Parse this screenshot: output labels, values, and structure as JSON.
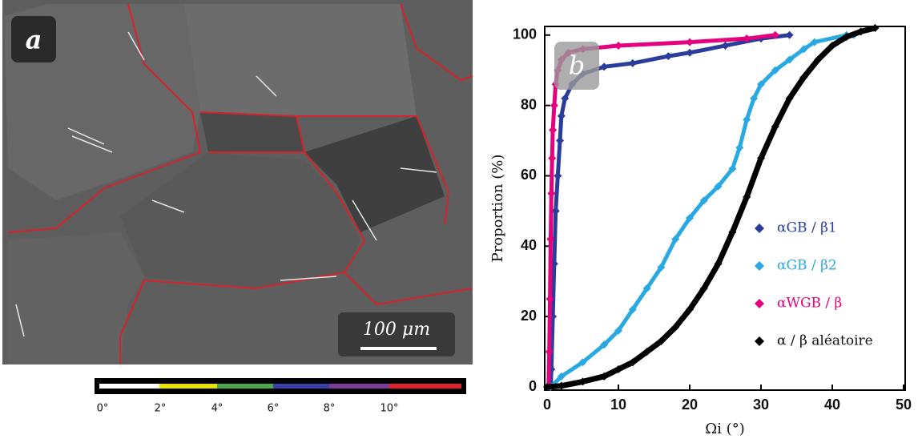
{
  "image": {
    "panel_label": "a",
    "scale_bar": "100 μm"
  },
  "colorbar": {
    "labels": [
      "0°",
      "2°",
      "4°",
      "6°",
      "8°",
      "10°"
    ]
  },
  "chart_data": {
    "type": "scatter",
    "panel_label": "b",
    "x_label": "Ωi (°)",
    "y_label": "Proportion (%)",
    "xlim": [
      0,
      50
    ],
    "xticks": [
      0,
      10,
      20,
      30,
      40,
      50
    ],
    "ylim": [
      0,
      102
    ],
    "yticks": [
      0,
      20,
      40,
      60,
      80,
      100
    ],
    "series": [
      {
        "name": "αGB / β1",
        "color": "#2b3d9b",
        "x": [
          0.5,
          0.6,
          0.8,
          1,
          1.2,
          1.5,
          1.8,
          2,
          2.5,
          3.5,
          5,
          8,
          12,
          17,
          20,
          25,
          30,
          34
        ],
        "values": [
          0,
          5,
          20,
          35,
          50,
          60,
          70,
          77,
          82,
          86,
          89,
          91,
          92,
          94,
          95,
          97,
          99,
          100
        ]
      },
      {
        "name": "αGB / β2",
        "color": "#29a9e1",
        "x": [
          0.5,
          2,
          5,
          8,
          10,
          12,
          14,
          16,
          18,
          20,
          22,
          24,
          26,
          27,
          28,
          29,
          30,
          32,
          34,
          36,
          37.5,
          42,
          43
        ],
        "values": [
          0,
          3,
          7,
          12,
          16,
          22,
          28,
          34,
          42,
          48,
          53,
          57,
          62,
          68,
          76,
          82,
          86,
          90,
          93,
          96,
          98,
          100,
          100
        ]
      },
      {
        "name": "αWGB / β",
        "color": "#e5007e",
        "x": [
          0.2,
          0.3,
          0.4,
          0.5,
          0.6,
          0.7,
          0.8,
          1,
          1.2,
          1.5,
          2,
          3,
          5,
          10,
          20,
          28,
          32
        ],
        "values": [
          0,
          10,
          25,
          42,
          55,
          65,
          73,
          80,
          86,
          90,
          93,
          95,
          96,
          97,
          98,
          99,
          100
        ]
      },
      {
        "name": "α / β aléatoire",
        "color": "#000000",
        "x": [
          0,
          2,
          5,
          8,
          10,
          12,
          14,
          16,
          18,
          20,
          22,
          24,
          26,
          28,
          30,
          32,
          34,
          36,
          38,
          40,
          42,
          44,
          46
        ],
        "values": [
          0,
          0.3,
          1.5,
          3,
          5,
          7,
          10,
          13,
          17,
          22,
          28,
          35,
          44,
          54,
          65,
          74,
          82,
          88,
          93,
          97,
          99.5,
          101,
          102
        ]
      }
    ]
  }
}
